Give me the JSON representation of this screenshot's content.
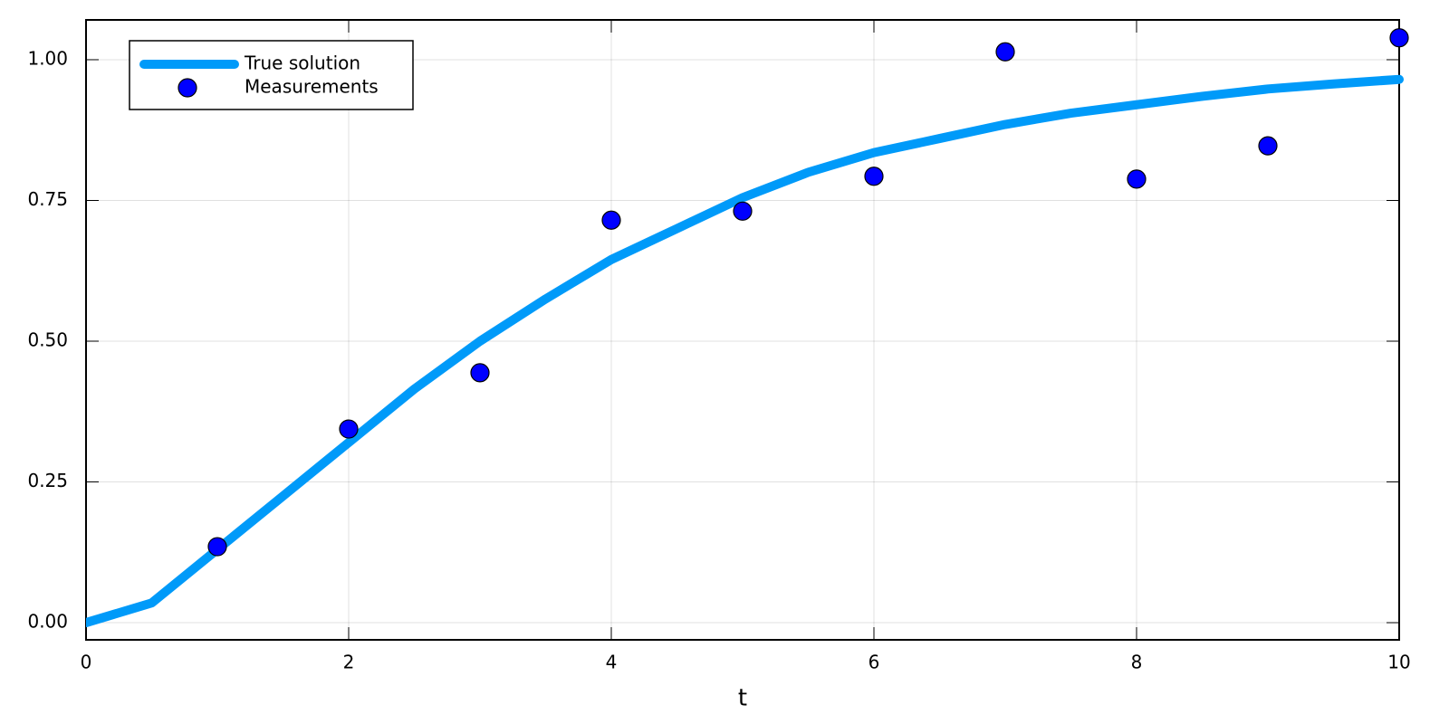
{
  "chart_data": {
    "type": "line",
    "xlabel": "t",
    "xlim": [
      0,
      10
    ],
    "ylim": [
      -0.0305,
      1.0707
    ],
    "xticks": [
      0,
      2,
      4,
      6,
      8,
      10
    ],
    "yticks": [
      {
        "value": 0,
        "label": "0.00"
      },
      {
        "value": 0.25,
        "label": "0.25"
      },
      {
        "value": 0.5,
        "label": "0.50"
      },
      {
        "value": 0.75,
        "label": "0.75"
      },
      {
        "value": 1,
        "label": "1.00"
      }
    ],
    "grid": true,
    "legend": "top-left",
    "series": [
      {
        "name": "True solution",
        "type": "line",
        "color": "#009af9",
        "x": [
          0,
          0.5,
          1,
          1.5,
          2,
          2.5,
          3,
          3.5,
          4,
          4.5,
          5,
          5.5,
          6,
          6.5,
          7,
          7.5,
          8,
          8.5,
          9,
          9.5,
          10
        ],
        "values": [
          0,
          0.035,
          0.13,
          0.225,
          0.32,
          0.415,
          0.5,
          0.575,
          0.645,
          0.7,
          0.755,
          0.8,
          0.835,
          0.86,
          0.885,
          0.905,
          0.92,
          0.935,
          0.948,
          0.957,
          0.965
        ]
      },
      {
        "name": "Measurements",
        "type": "scatter",
        "color": "#0000ff",
        "x": [
          1,
          2,
          3,
          4,
          5,
          6,
          7,
          8,
          9,
          10
        ],
        "values": [
          0.135,
          0.344,
          0.444,
          0.715,
          0.731,
          0.793,
          1.014,
          0.788,
          0.847,
          1.039
        ]
      }
    ]
  }
}
